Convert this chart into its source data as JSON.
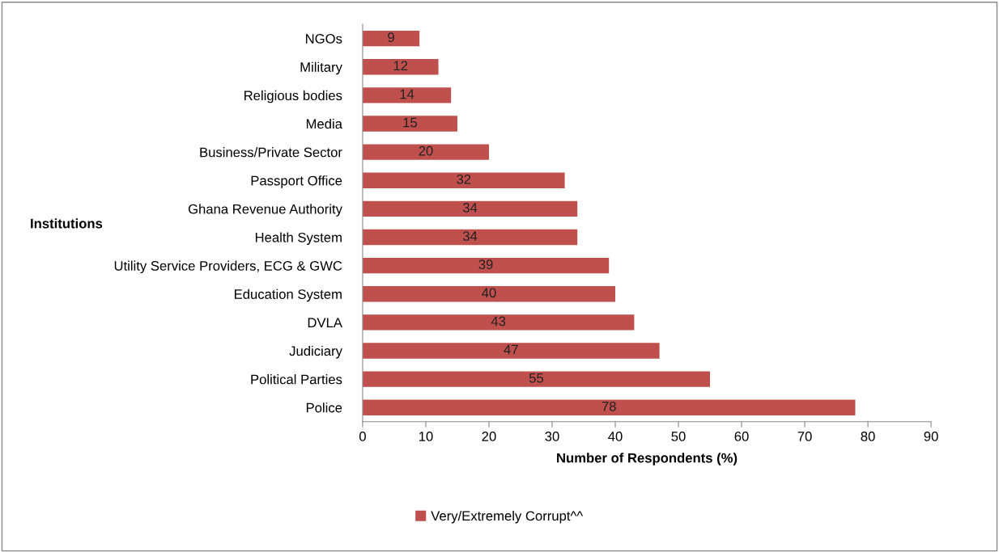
{
  "chart_data": {
    "type": "bar",
    "orientation": "horizontal",
    "categories": [
      "NGOs",
      "Military",
      "Religious bodies",
      "Media",
      "Business/Private Sector",
      "Passport Office",
      "Ghana Revenue Authority",
      "Health System",
      "Utility Service Providers, ECG & GWC",
      "Education System",
      "DVLA",
      "Judiciary",
      "Political Parties",
      "Police"
    ],
    "series": [
      {
        "name": "Very/Extremely Corrupt^^",
        "color": "#c0504d",
        "values": [
          9,
          12,
          14,
          15,
          20,
          32,
          34,
          34,
          39,
          40,
          43,
          47,
          55,
          78
        ]
      }
    ],
    "xlim": [
      0,
      90
    ],
    "xticks": [
      0,
      10,
      20,
      30,
      40,
      50,
      60,
      70,
      80,
      90
    ],
    "xlabel": "Number of Respondents (%)",
    "ylabel": "Institutions",
    "data_labels": true,
    "legend": "bottom",
    "grid": false
  }
}
